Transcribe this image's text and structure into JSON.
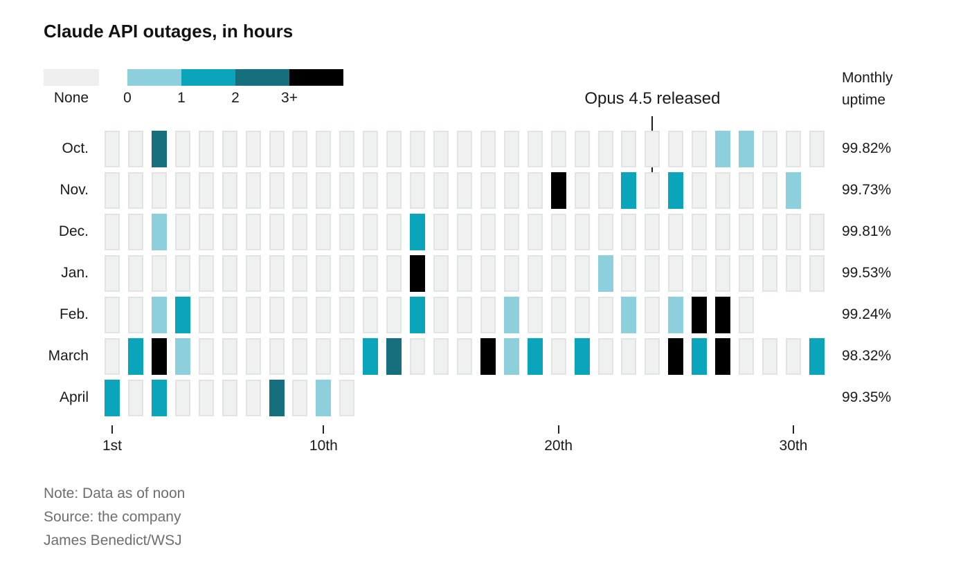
{
  "title": "Claude API outages, in hours",
  "legend": {
    "none_label": "None",
    "none_color": "#efefef",
    "bins": [
      {
        "label": "0",
        "color": "#8ecfdd"
      },
      {
        "label": "1",
        "color": "#0aa5bb"
      },
      {
        "label": "2",
        "color": "#166f7d"
      },
      {
        "label": "3+",
        "color": "#000000"
      }
    ]
  },
  "uptime_header": "Monthly\nuptime",
  "annotation": {
    "text": "Opus 4.5 released",
    "month": "Nov.",
    "day": 24
  },
  "notes": [
    "Note: Data as of noon",
    "Source: the company",
    "James Benedict/WSJ"
  ],
  "chart_data": {
    "type": "heatmap",
    "title": "Claude API outages, in hours",
    "x_axis": {
      "ticks": [
        {
          "day": 1,
          "label": "1st"
        },
        {
          "day": 10,
          "label": "10th"
        },
        {
          "day": 20,
          "label": "20th"
        },
        {
          "day": 30,
          "label": "30th"
        }
      ]
    },
    "value_bins": [
      "0",
      "1",
      "2",
      "3+"
    ],
    "bin_meaning": "index into legend.bins; days absent from outage_hours_bin_by_day had no outage (None)",
    "rows": [
      {
        "month": "Oct.",
        "uptime": "99.82%",
        "days_in_month": 31,
        "outage_hours_bin_by_day": {
          "3": 2,
          "27": 0,
          "28": 0
        }
      },
      {
        "month": "Nov.",
        "uptime": "99.73%",
        "days_in_month": 30,
        "outage_hours_bin_by_day": {
          "20": 3,
          "23": 1,
          "25": 1,
          "30": 0
        }
      },
      {
        "month": "Dec.",
        "uptime": "99.81%",
        "days_in_month": 31,
        "outage_hours_bin_by_day": {
          "3": 0,
          "14": 1
        }
      },
      {
        "month": "Jan.",
        "uptime": "99.53%",
        "days_in_month": 31,
        "outage_hours_bin_by_day": {
          "14": 3,
          "22": 0
        }
      },
      {
        "month": "Feb.",
        "uptime": "99.24%",
        "days_in_month": 28,
        "outage_hours_bin_by_day": {
          "3": 0,
          "4": 1,
          "14": 1,
          "18": 0,
          "23": 0,
          "25": 0,
          "26": 3,
          "27": 3
        }
      },
      {
        "month": "March",
        "uptime": "98.32%",
        "days_in_month": 31,
        "outage_hours_bin_by_day": {
          "2": 1,
          "3": 3,
          "4": 0,
          "12": 1,
          "13": 2,
          "17": 3,
          "18": 0,
          "19": 1,
          "21": 1,
          "25": 3,
          "26": 1,
          "27": 3,
          "31": 1
        }
      },
      {
        "month": "April",
        "uptime": "99.35%",
        "days_in_month": 11,
        "outage_hours_bin_by_day": {
          "1": 1,
          "3": 1,
          "8": 2,
          "10": 0
        }
      }
    ]
  }
}
